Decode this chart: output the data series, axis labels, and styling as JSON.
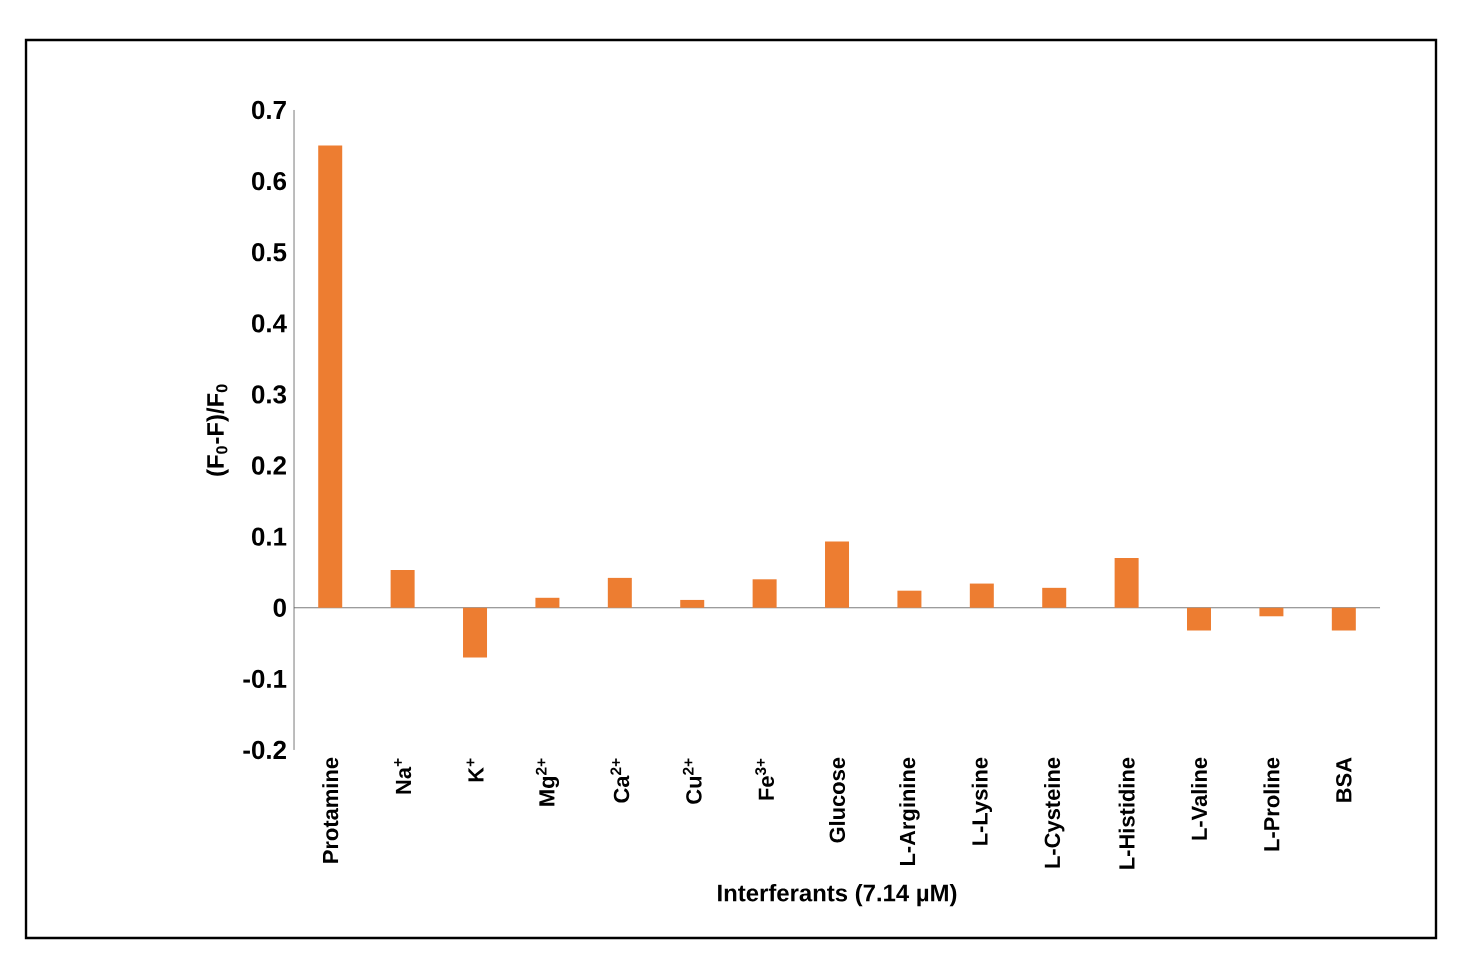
{
  "chart_data": {
    "type": "bar",
    "xlabel": "Interferants (7.14 µM)",
    "ylabel": "(F$_{0}$-F)/F$_{0}$",
    "categories": [
      "Protamine",
      "Na$^{+}$",
      "K$^{+}$",
      "Mg$^{2+}$",
      "Ca$^{2+}$",
      "Cu$^{2+}$",
      "Fe$^{3+}$",
      "Glucose",
      "L-Arginine",
      "L-Lysine",
      "L-Cysteine",
      "L-Histidine",
      "L-Valine",
      "L-Proline",
      "BSA"
    ],
    "values": [
      0.65,
      0.053,
      -0.07,
      0.014,
      0.042,
      0.011,
      0.04,
      0.093,
      0.024,
      0.034,
      0.028,
      0.07,
      -0.032,
      -0.012,
      -0.032
    ],
    "color": "#ed7d31",
    "ylim": [
      -0.2,
      0.7
    ],
    "yticks": [
      -0.2,
      -0.1,
      0,
      0.1,
      0.2,
      0.3,
      0.4,
      0.5,
      0.6,
      0.7
    ]
  }
}
